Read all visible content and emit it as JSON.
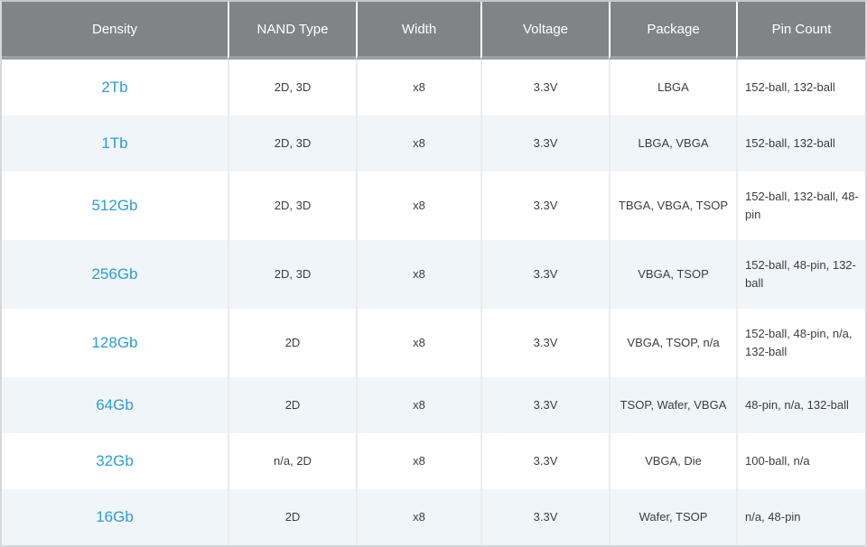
{
  "colors": {
    "header_bg": "#818386",
    "header_band": "#9ca0a3",
    "header_text": "#ffffff",
    "link_blue": "#2b9cd8",
    "row_alt_bg": "#f0f5f9",
    "body_text": "#3d3d3d",
    "grid_line": "#eaecee",
    "outer_border": "#d6d8da",
    "outer_border_top": "#c6c8ca"
  },
  "table": {
    "columns": [
      {
        "key": "density",
        "label": "Density"
      },
      {
        "key": "nand_type",
        "label": "NAND Type"
      },
      {
        "key": "width",
        "label": "Width"
      },
      {
        "key": "voltage",
        "label": "Voltage"
      },
      {
        "key": "package",
        "label": "Package"
      },
      {
        "key": "pin_count",
        "label": "Pin Count"
      }
    ],
    "rows": [
      {
        "density": "2Tb",
        "nand_type": "2D, 3D",
        "width": "x8",
        "voltage": "3.3V",
        "package": "LBGA",
        "pin_count": "152-ball, 132-ball"
      },
      {
        "density": "1Tb",
        "nand_type": "2D, 3D",
        "width": "x8",
        "voltage": "3.3V",
        "package": "LBGA, VBGA",
        "pin_count": "152-ball, 132-ball"
      },
      {
        "density": "512Gb",
        "nand_type": "2D, 3D",
        "width": "x8",
        "voltage": "3.3V",
        "package": "TBGA, VBGA, TSOP",
        "pin_count": "152-ball, 132-ball, 48-pin"
      },
      {
        "density": "256Gb",
        "nand_type": "2D, 3D",
        "width": "x8",
        "voltage": "3.3V",
        "package": "VBGA, TSOP",
        "pin_count": "152-ball, 48-pin, 132-ball"
      },
      {
        "density": "128Gb",
        "nand_type": "2D",
        "width": "x8",
        "voltage": "3.3V",
        "package": "VBGA, TSOP, n/a",
        "pin_count": "152-ball, 48-pin, n/a, 132-ball"
      },
      {
        "density": "64Gb",
        "nand_type": "2D",
        "width": "x8",
        "voltage": "3.3V",
        "package": "TSOP, Wafer, VBGA",
        "pin_count": "48-pin, n/a, 132-ball"
      },
      {
        "density": "32Gb",
        "nand_type": "n/a, 2D",
        "width": "x8",
        "voltage": "3.3V",
        "package": "VBGA, Die",
        "pin_count": "100-ball, n/a"
      },
      {
        "density": "16Gb",
        "nand_type": "2D",
        "width": "x8",
        "voltage": "3.3V",
        "package": "Wafer, TSOP",
        "pin_count": "n/a, 48-pin"
      }
    ]
  }
}
